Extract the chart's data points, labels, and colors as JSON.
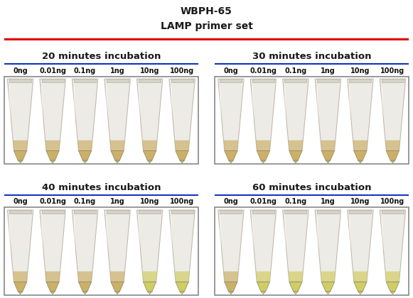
{
  "title_line1": "WBPH-65",
  "title_line2": "LAMP primer set",
  "title_fontsize": 10,
  "title_color": "#1a1a1a",
  "red_line_color": "#dd1111",
  "blue_line_color": "#1133bb",
  "panel_titles": [
    "20 minutes incubation",
    "30 minutes incubation",
    "40 minutes incubation",
    "60 minutes incubation"
  ],
  "panel_title_fontsize": 9.5,
  "dna_labels": [
    "0ng",
    "0.01ng",
    "0.1ng",
    "1ng",
    "10ng",
    "100ng"
  ],
  "label_fontsize": 7,
  "label_color": "#111111",
  "background_color": "#ffffff",
  "tube_colors_20": [
    "#c8a855",
    "#c8a855",
    "#c8a855",
    "#c8a855",
    "#c8a855",
    "#c8a855"
  ],
  "tube_colors_30": [
    "#c8a855",
    "#c8a855",
    "#c8a855",
    "#c8a855",
    "#c8a855",
    "#c8a855"
  ],
  "tube_colors_40": [
    "#c8a855",
    "#c8a855",
    "#c8a855",
    "#c8a855",
    "#ccc850",
    "#ccc850"
  ],
  "tube_colors_60": [
    "#c8a855",
    "#ccc850",
    "#ccc850",
    "#ccc850",
    "#ccc850",
    "#ccc850"
  ],
  "panel_bg_20": "#d8cfc0",
  "panel_bg_30": "#cfc8b8",
  "panel_bg_40": "#cfd0b8",
  "panel_bg_60": "#c8cdb8"
}
